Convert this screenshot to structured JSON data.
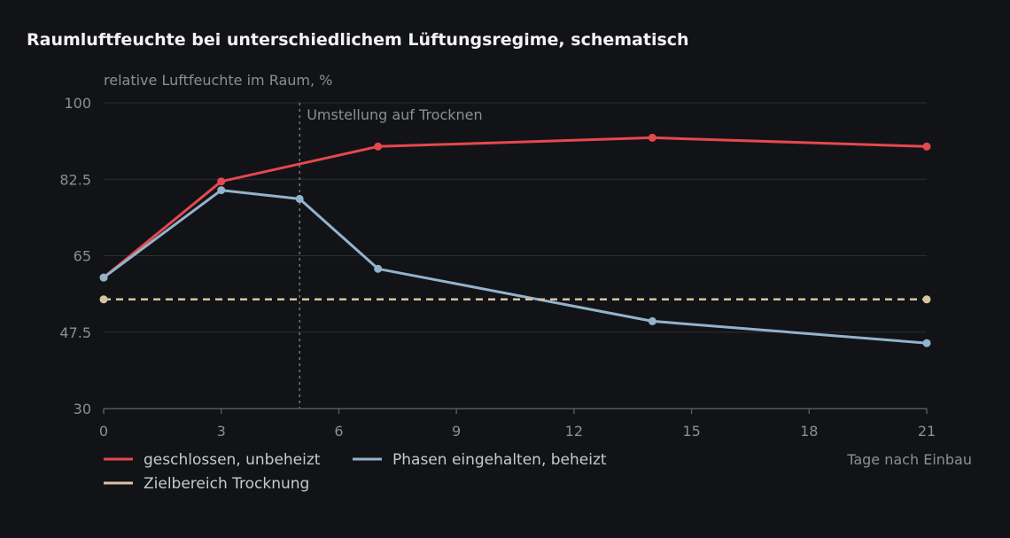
{
  "chart_data": {
    "type": "line",
    "title": "Raumluftfeuchte bei unterschiedlichem Lüftungsregime, schematisch",
    "ylabel": "relative Luftfeuchte im Raum, %",
    "xlabel": "Tage nach Einbau",
    "xlim": [
      0,
      21
    ],
    "ylim": [
      30,
      100
    ],
    "xticks": [
      0,
      3,
      6,
      9,
      12,
      15,
      18,
      21
    ],
    "yticks": [
      30,
      47.5,
      65,
      82.5,
      100
    ],
    "grid": true,
    "series": [
      {
        "name": "geschlossen, unbeheizt",
        "color": "#e5484d",
        "dashed": false,
        "x": [
          0,
          3,
          7,
          14,
          21
        ],
        "y": [
          60,
          82,
          90,
          92,
          90
        ]
      },
      {
        "name": "Phasen eingehalten, beheizt",
        "color": "#93b3cc",
        "dashed": false,
        "x": [
          0,
          3,
          5,
          7,
          14,
          21
        ],
        "y": [
          60,
          80,
          78,
          62,
          50,
          45
        ]
      },
      {
        "name": "Zielbereich Trocknung",
        "color": "#d8c3a0",
        "dashed": true,
        "x": [
          0,
          21
        ],
        "y": [
          55,
          55
        ]
      }
    ],
    "annotations": [
      {
        "x": 5,
        "text": "Umstellung auf Trocknen"
      }
    ],
    "legend_position": "bottom-left"
  }
}
